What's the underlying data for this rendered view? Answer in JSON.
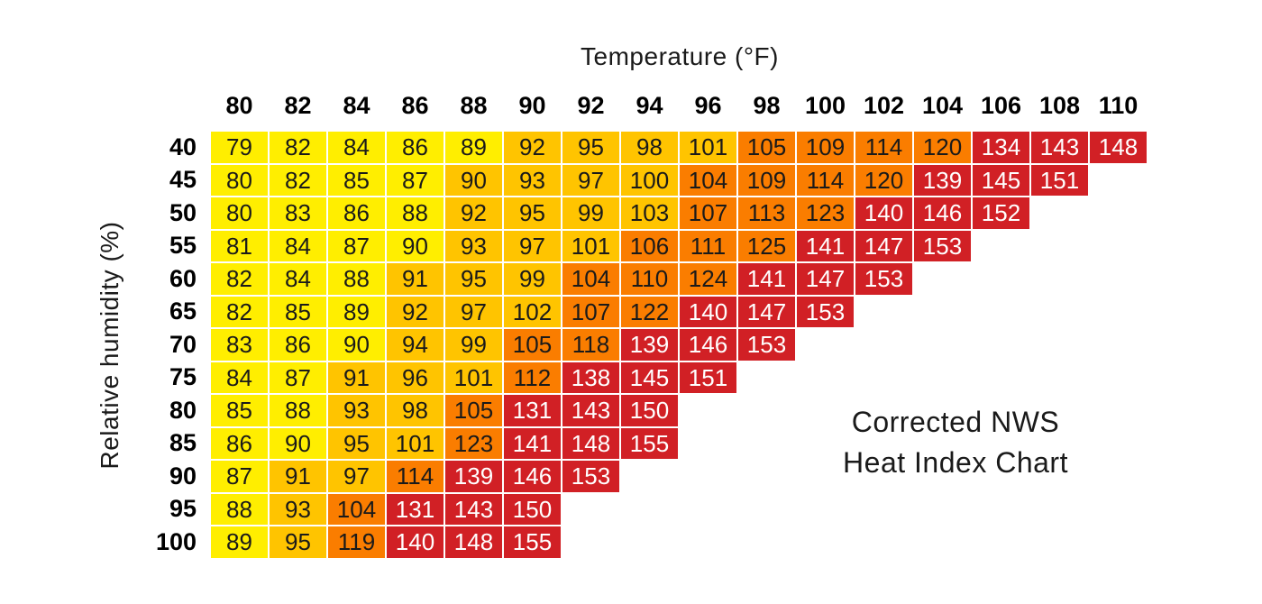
{
  "annotation": {
    "line1": "Corrected NWS",
    "line2": "Heat Index Chart"
  },
  "chart_data": {
    "type": "heatmap",
    "title": "Corrected NWS Heat Index Chart",
    "xlabel": "Temperature (°F)",
    "ylabel": "Relative humidity (%)",
    "x_ticks": [
      "80",
      "82",
      "84",
      "86",
      "88",
      "90",
      "92",
      "94",
      "96",
      "98",
      "100",
      "102",
      "104",
      "106",
      "108",
      "110"
    ],
    "y_ticks": [
      "40",
      "45",
      "50",
      "55",
      "60",
      "65",
      "70",
      "75",
      "80",
      "85",
      "90",
      "95",
      "100"
    ],
    "grid": "off",
    "legend_position": "none",
    "color_scale": {
      "yellow": "#FFEE00",
      "gold": "#FFC400",
      "orange": "#FA7D00",
      "red": "#D12025"
    },
    "cell_text_colors": {
      "default": "#1a1a1a",
      "red": "#ffffff"
    },
    "rows": [
      {
        "humidity": "40",
        "values": [
          79,
          82,
          84,
          86,
          89,
          92,
          95,
          98,
          101,
          105,
          109,
          114,
          120,
          134,
          143,
          148
        ],
        "colors": [
          "yellow",
          "yellow",
          "yellow",
          "yellow",
          "yellow",
          "gold",
          "gold",
          "gold",
          "gold",
          "orange",
          "orange",
          "orange",
          "orange",
          "red",
          "red",
          "red"
        ]
      },
      {
        "humidity": "45",
        "values": [
          80,
          82,
          85,
          87,
          90,
          93,
          97,
          100,
          104,
          109,
          114,
          120,
          139,
          145,
          151
        ],
        "colors": [
          "yellow",
          "yellow",
          "yellow",
          "yellow",
          "gold",
          "gold",
          "gold",
          "gold",
          "orange",
          "orange",
          "orange",
          "orange",
          "red",
          "red",
          "red"
        ]
      },
      {
        "humidity": "50",
        "values": [
          80,
          83,
          86,
          88,
          92,
          95,
          99,
          103,
          107,
          113,
          123,
          140,
          146,
          152
        ],
        "colors": [
          "yellow",
          "yellow",
          "yellow",
          "yellow",
          "gold",
          "gold",
          "gold",
          "gold",
          "orange",
          "orange",
          "orange",
          "red",
          "red",
          "red"
        ]
      },
      {
        "humidity": "55",
        "values": [
          81,
          84,
          87,
          90,
          93,
          97,
          101,
          106,
          111,
          125,
          141,
          147,
          153
        ],
        "colors": [
          "yellow",
          "yellow",
          "yellow",
          "yellow",
          "gold",
          "gold",
          "gold",
          "orange",
          "orange",
          "orange",
          "red",
          "red",
          "red"
        ]
      },
      {
        "humidity": "60",
        "values": [
          82,
          84,
          88,
          91,
          95,
          99,
          104,
          110,
          124,
          141,
          147,
          153
        ],
        "colors": [
          "yellow",
          "yellow",
          "yellow",
          "gold",
          "gold",
          "gold",
          "orange",
          "orange",
          "orange",
          "red",
          "red",
          "red"
        ]
      },
      {
        "humidity": "65",
        "values": [
          82,
          85,
          89,
          92,
          97,
          102,
          107,
          122,
          140,
          147,
          153
        ],
        "colors": [
          "yellow",
          "yellow",
          "yellow",
          "gold",
          "gold",
          "gold",
          "orange",
          "orange",
          "red",
          "red",
          "red"
        ]
      },
      {
        "humidity": "70",
        "values": [
          83,
          86,
          90,
          94,
          99,
          105,
          118,
          139,
          146,
          153
        ],
        "colors": [
          "yellow",
          "yellow",
          "yellow",
          "gold",
          "gold",
          "orange",
          "orange",
          "red",
          "red",
          "red"
        ]
      },
      {
        "humidity": "75",
        "values": [
          84,
          87,
          91,
          96,
          101,
          112,
          138,
          145,
          151
        ],
        "colors": [
          "yellow",
          "yellow",
          "gold",
          "gold",
          "gold",
          "orange",
          "red",
          "red",
          "red"
        ]
      },
      {
        "humidity": "80",
        "values": [
          85,
          88,
          93,
          98,
          105,
          131,
          143,
          150
        ],
        "colors": [
          "yellow",
          "yellow",
          "gold",
          "gold",
          "orange",
          "red",
          "red",
          "red"
        ]
      },
      {
        "humidity": "85",
        "values": [
          86,
          90,
          95,
          101,
          123,
          141,
          148,
          155
        ],
        "colors": [
          "yellow",
          "yellow",
          "gold",
          "gold",
          "orange",
          "red",
          "red",
          "red"
        ]
      },
      {
        "humidity": "90",
        "values": [
          87,
          91,
          97,
          114,
          139,
          146,
          153
        ],
        "colors": [
          "yellow",
          "gold",
          "gold",
          "orange",
          "red",
          "red",
          "red"
        ]
      },
      {
        "humidity": "95",
        "values": [
          88,
          93,
          104,
          131,
          143,
          150
        ],
        "colors": [
          "yellow",
          "gold",
          "orange",
          "red",
          "red",
          "red"
        ]
      },
      {
        "humidity": "100",
        "values": [
          89,
          95,
          119,
          140,
          148,
          155
        ],
        "colors": [
          "yellow",
          "gold",
          "orange",
          "red",
          "red",
          "red"
        ]
      }
    ]
  }
}
